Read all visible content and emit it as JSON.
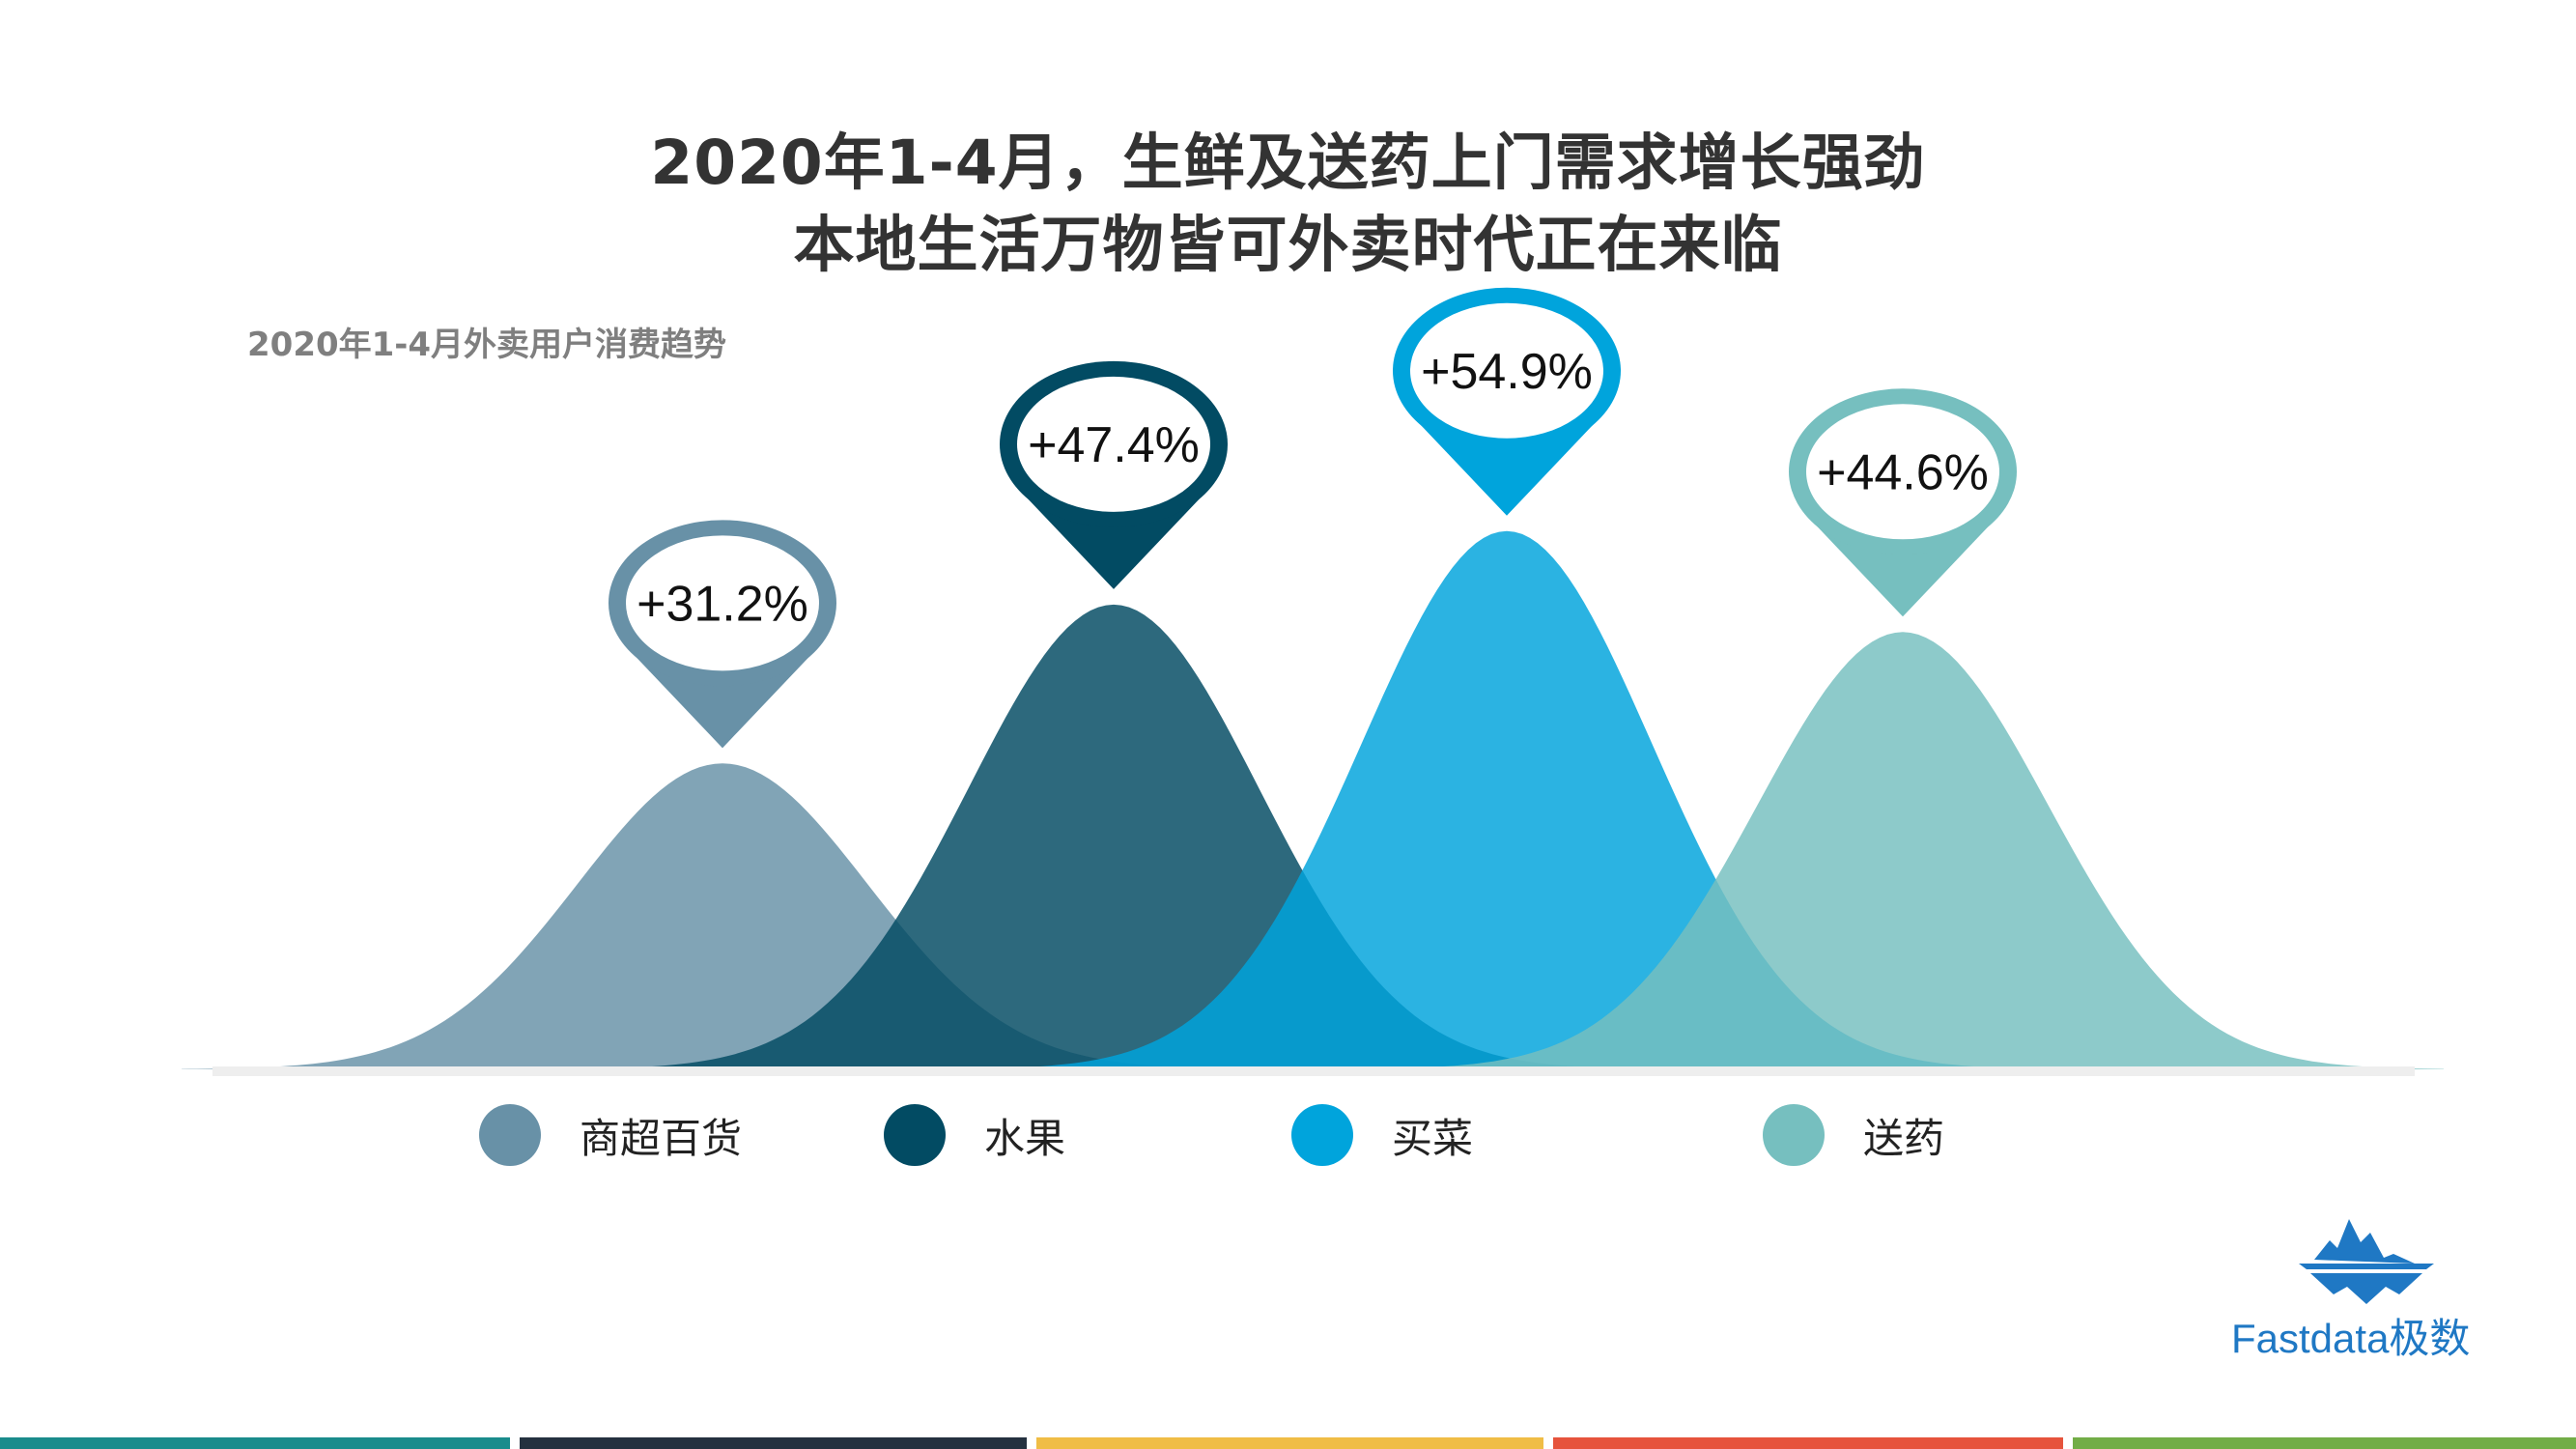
{
  "header": {
    "title_line1": "2020年1-4月，生鲜及送药上门需求增长强劲",
    "title_line2": "本地生活万物皆可外卖时代正在来临",
    "subtitle": "2020年1-4月外卖用户消费趋势"
  },
  "chart_data": {
    "type": "area",
    "title": "2020年1-4月外卖用户消费趋势",
    "xlabel": "",
    "ylabel": "",
    "grid": false,
    "legend_placement": "bottom",
    "ylim": [
      0,
      60
    ],
    "series": [
      {
        "name": "商超百货",
        "value": 31.2,
        "label": "+31.2%",
        "color": "#6891a7"
      },
      {
        "name": "水果",
        "value": 47.4,
        "label": "+47.4%",
        "color": "#024b63"
      },
      {
        "name": "买菜",
        "value": 54.9,
        "label": "+54.9%",
        "color": "#00a4dc"
      },
      {
        "name": "送药",
        "value": 44.6,
        "label": "+44.6%",
        "color": "#76bfbf"
      }
    ]
  },
  "logo": {
    "text": "Fastdata极数",
    "icon": "iceberg-logo-icon",
    "color": "#1f78c4"
  },
  "bottom_bars": [
    "#1a8c8c",
    "#24313f",
    "#f0bd45",
    "#e6533c",
    "#72ad47"
  ]
}
